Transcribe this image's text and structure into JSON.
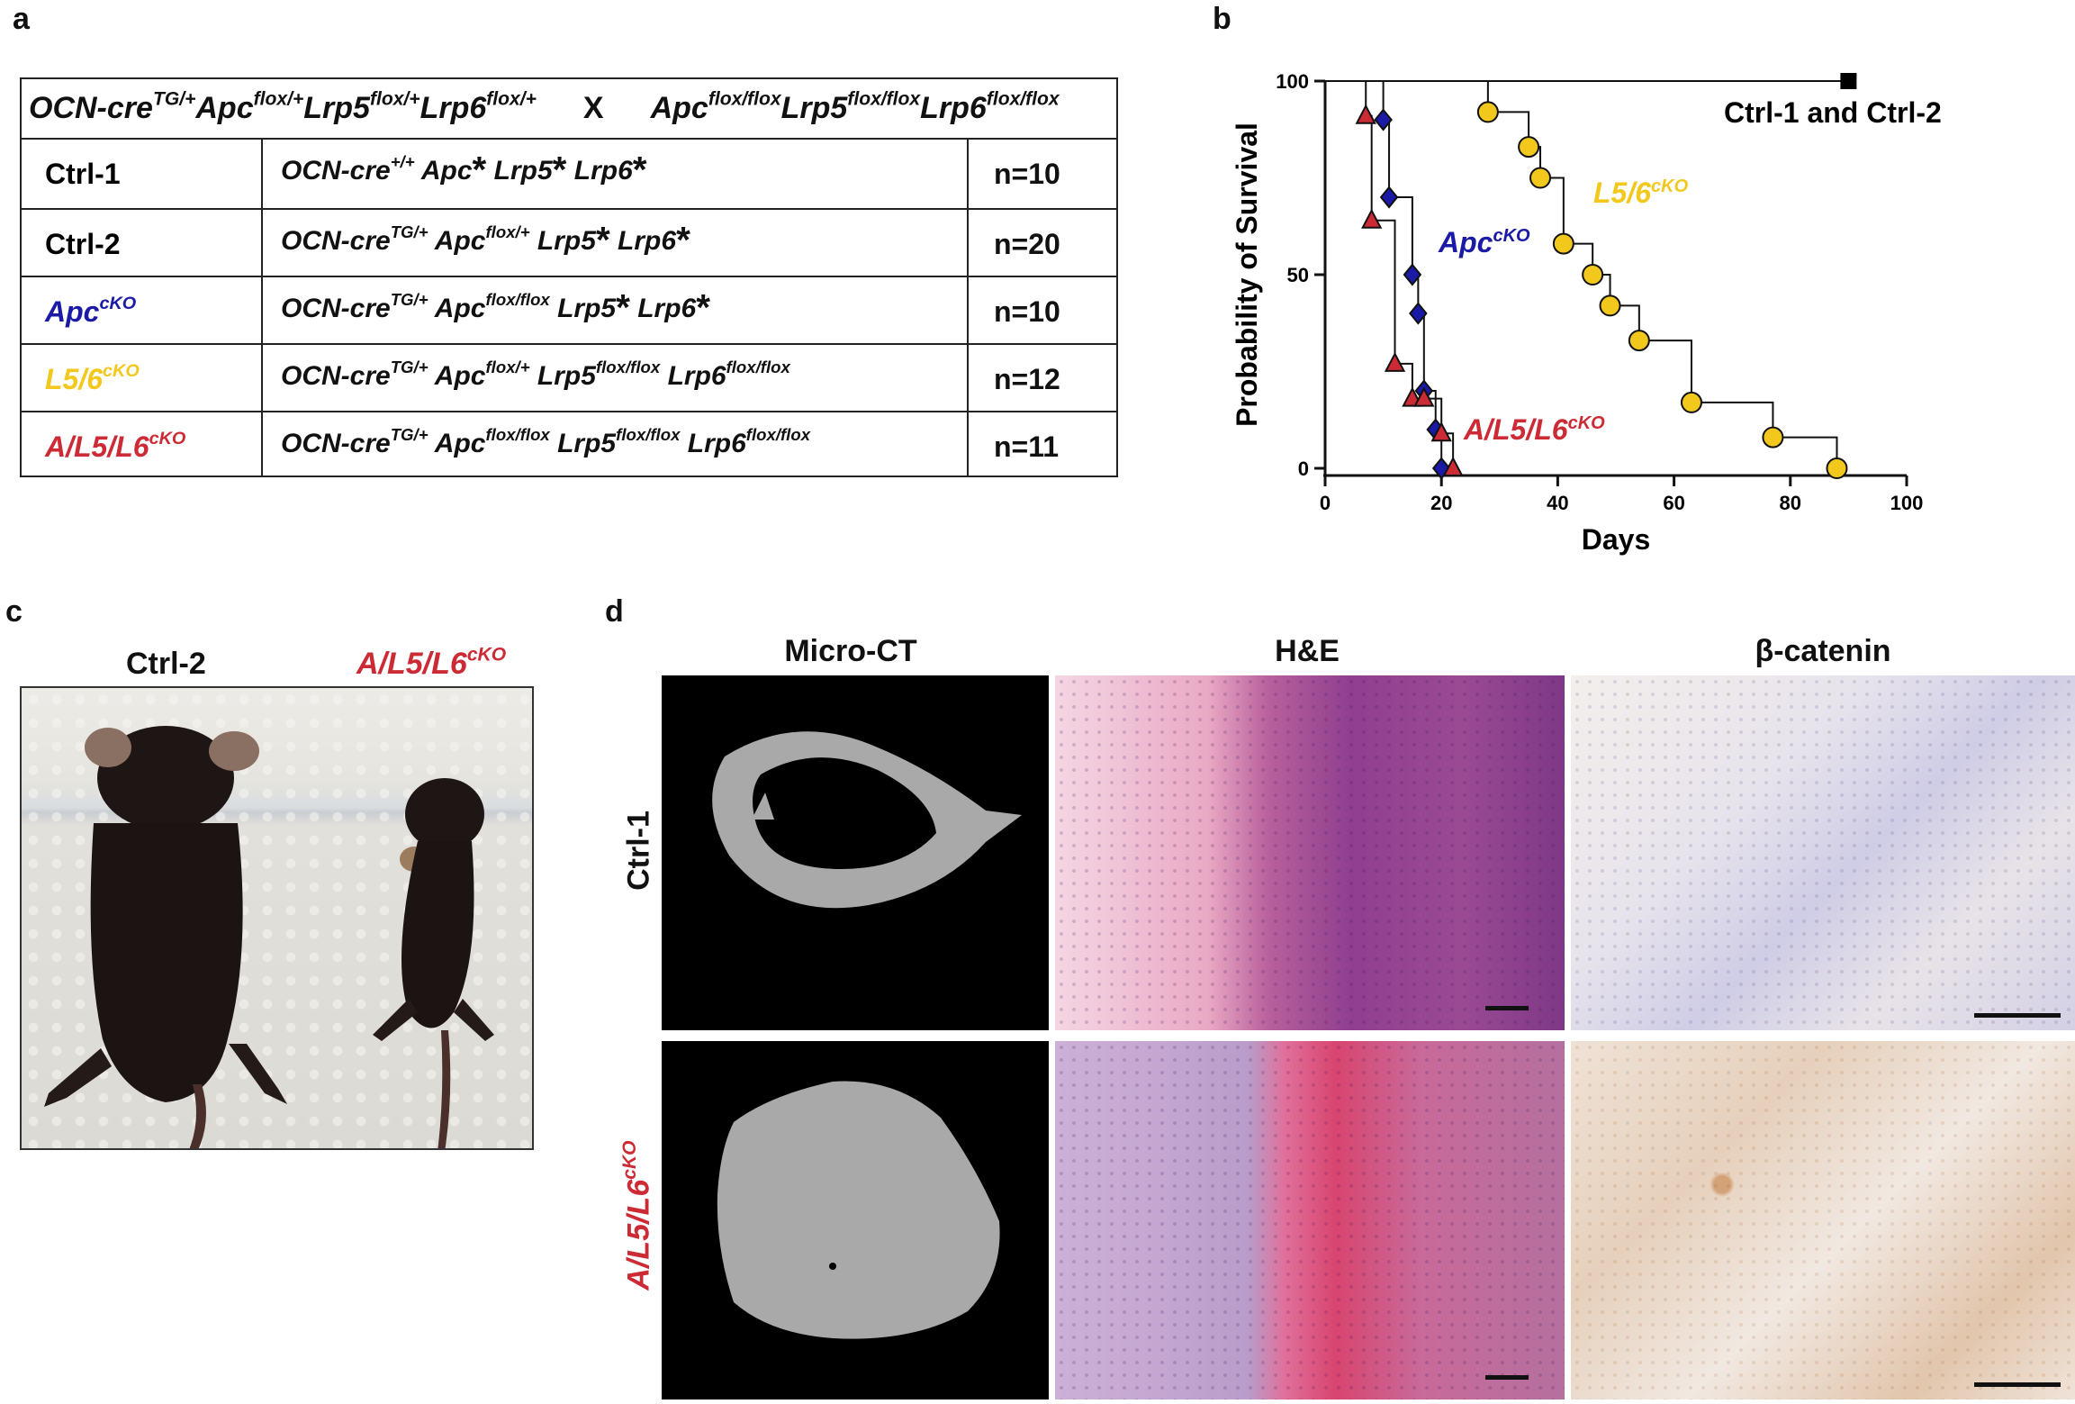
{
  "panels": {
    "a": "a",
    "b": "b",
    "c": "c",
    "d": "d"
  },
  "colors": {
    "ctrl": "#000000",
    "apc": "#1a1aa6",
    "l56": "#f2c81c",
    "triple": "#cc2b35"
  },
  "table": {
    "cross": {
      "left_parts": [
        "OCN-cre",
        "TG/+",
        "Apc",
        "flox/+",
        "Lrp5",
        "flox/+",
        "Lrp6",
        "flox/+"
      ],
      "x": "X",
      "right_parts": [
        "Apc",
        "flox/flox",
        "Lrp5",
        "flox/flox",
        "Lrp6",
        "flox/flox"
      ]
    },
    "rows": [
      {
        "name": "Ctrl-1",
        "name_sup": "",
        "n": "n=10",
        "geno": [
          [
            "OCN-cre",
            "+/+"
          ],
          [
            "Apc",
            ""
          ],
          [
            "*",
            ""
          ],
          [
            "Lrp5",
            ""
          ],
          [
            "*",
            ""
          ],
          [
            "Lrp6",
            ""
          ],
          [
            "*",
            ""
          ]
        ]
      },
      {
        "name": "Ctrl-2",
        "name_sup": "",
        "n": "n=20",
        "geno": [
          [
            "OCN-cre",
            "TG/+"
          ],
          [
            "Apc",
            "flox/+"
          ],
          [
            "Lrp5",
            ""
          ],
          [
            "*",
            ""
          ],
          [
            "Lrp6",
            ""
          ],
          [
            "*",
            ""
          ]
        ]
      },
      {
        "name": "Apc",
        "name_sup": "cKO",
        "n": "n=10",
        "geno": [
          [
            "OCN-cre",
            "TG/+"
          ],
          [
            "Apc",
            "flox/flox"
          ],
          [
            "Lrp5",
            ""
          ],
          [
            "*",
            ""
          ],
          [
            "Lrp6",
            ""
          ],
          [
            "*",
            ""
          ]
        ]
      },
      {
        "name": "L5/6",
        "name_sup": "cKO",
        "n": "n=12",
        "geno": [
          [
            "OCN-cre",
            "TG/+"
          ],
          [
            "Apc",
            "flox/+"
          ],
          [
            "Lrp5",
            "flox/flox"
          ],
          [
            "Lrp6",
            "flox/flox"
          ]
        ]
      },
      {
        "name": "A/L5/L6",
        "name_sup": "cKO",
        "n": "n=11",
        "geno": [
          [
            "OCN-cre",
            "TG/+"
          ],
          [
            "Apc",
            "flox/flox"
          ],
          [
            "Lrp5",
            "flox/flox"
          ],
          [
            "Lrp6",
            "flox/flox"
          ]
        ]
      }
    ]
  },
  "chart_data": {
    "type": "line",
    "subtype": "kaplan-meier step",
    "xlabel": "Days",
    "ylabel": "Probability of Survival",
    "xlim": [
      0,
      100
    ],
    "ylim": [
      0,
      100
    ],
    "xticks": [
      0,
      20,
      40,
      60,
      80,
      100
    ],
    "yticks": [
      0,
      50,
      100
    ],
    "series": [
      {
        "name": "Ctrl-1 and Ctrl-2",
        "color": "#000000",
        "marker": "square",
        "x": [
          0,
          90
        ],
        "y": [
          100,
          100
        ]
      },
      {
        "name": "Apc",
        "name_sup": "cKO",
        "color": "#1a1aa6",
        "marker": "diamond",
        "x": [
          0,
          10,
          11,
          15,
          16,
          17,
          19,
          20
        ],
        "y": [
          100,
          90,
          70,
          50,
          40,
          20,
          10,
          0
        ]
      },
      {
        "name": "A/L5/L6",
        "name_sup": "cKO",
        "color": "#cc2b35",
        "marker": "triangle",
        "x": [
          0,
          7,
          8,
          12,
          15,
          17,
          20,
          22
        ],
        "y": [
          100,
          91,
          64,
          27,
          18,
          18,
          9,
          0
        ]
      },
      {
        "name": "L5/6",
        "name_sup": "cKO",
        "color": "#f2c81c",
        "marker": "circle",
        "x": [
          0,
          28,
          35,
          37,
          41,
          46,
          49,
          54,
          63,
          77,
          88
        ],
        "y": [
          100,
          92,
          83,
          75,
          58,
          50,
          42,
          33,
          17,
          8,
          0
        ]
      }
    ],
    "labels": [
      {
        "text": "Ctrl-1 and Ctrl-2",
        "sup": ""
      },
      {
        "text": "L5/6",
        "sup": "cKO"
      },
      {
        "text": "Apc",
        "sup": "cKO"
      },
      {
        "text": "A/L5/L6",
        "sup": "cKO"
      }
    ]
  },
  "photo": {
    "left_label": "Ctrl-2",
    "right_label": "A/L5/L6",
    "right_label_sup": "cKO"
  },
  "panel_d": {
    "columns": [
      "Micro-CT",
      "H&E",
      "β-catenin"
    ],
    "rows": [
      {
        "label": "Ctrl-1",
        "sup": ""
      },
      {
        "label": "A/L5/L6",
        "sup": "cKO"
      }
    ]
  }
}
